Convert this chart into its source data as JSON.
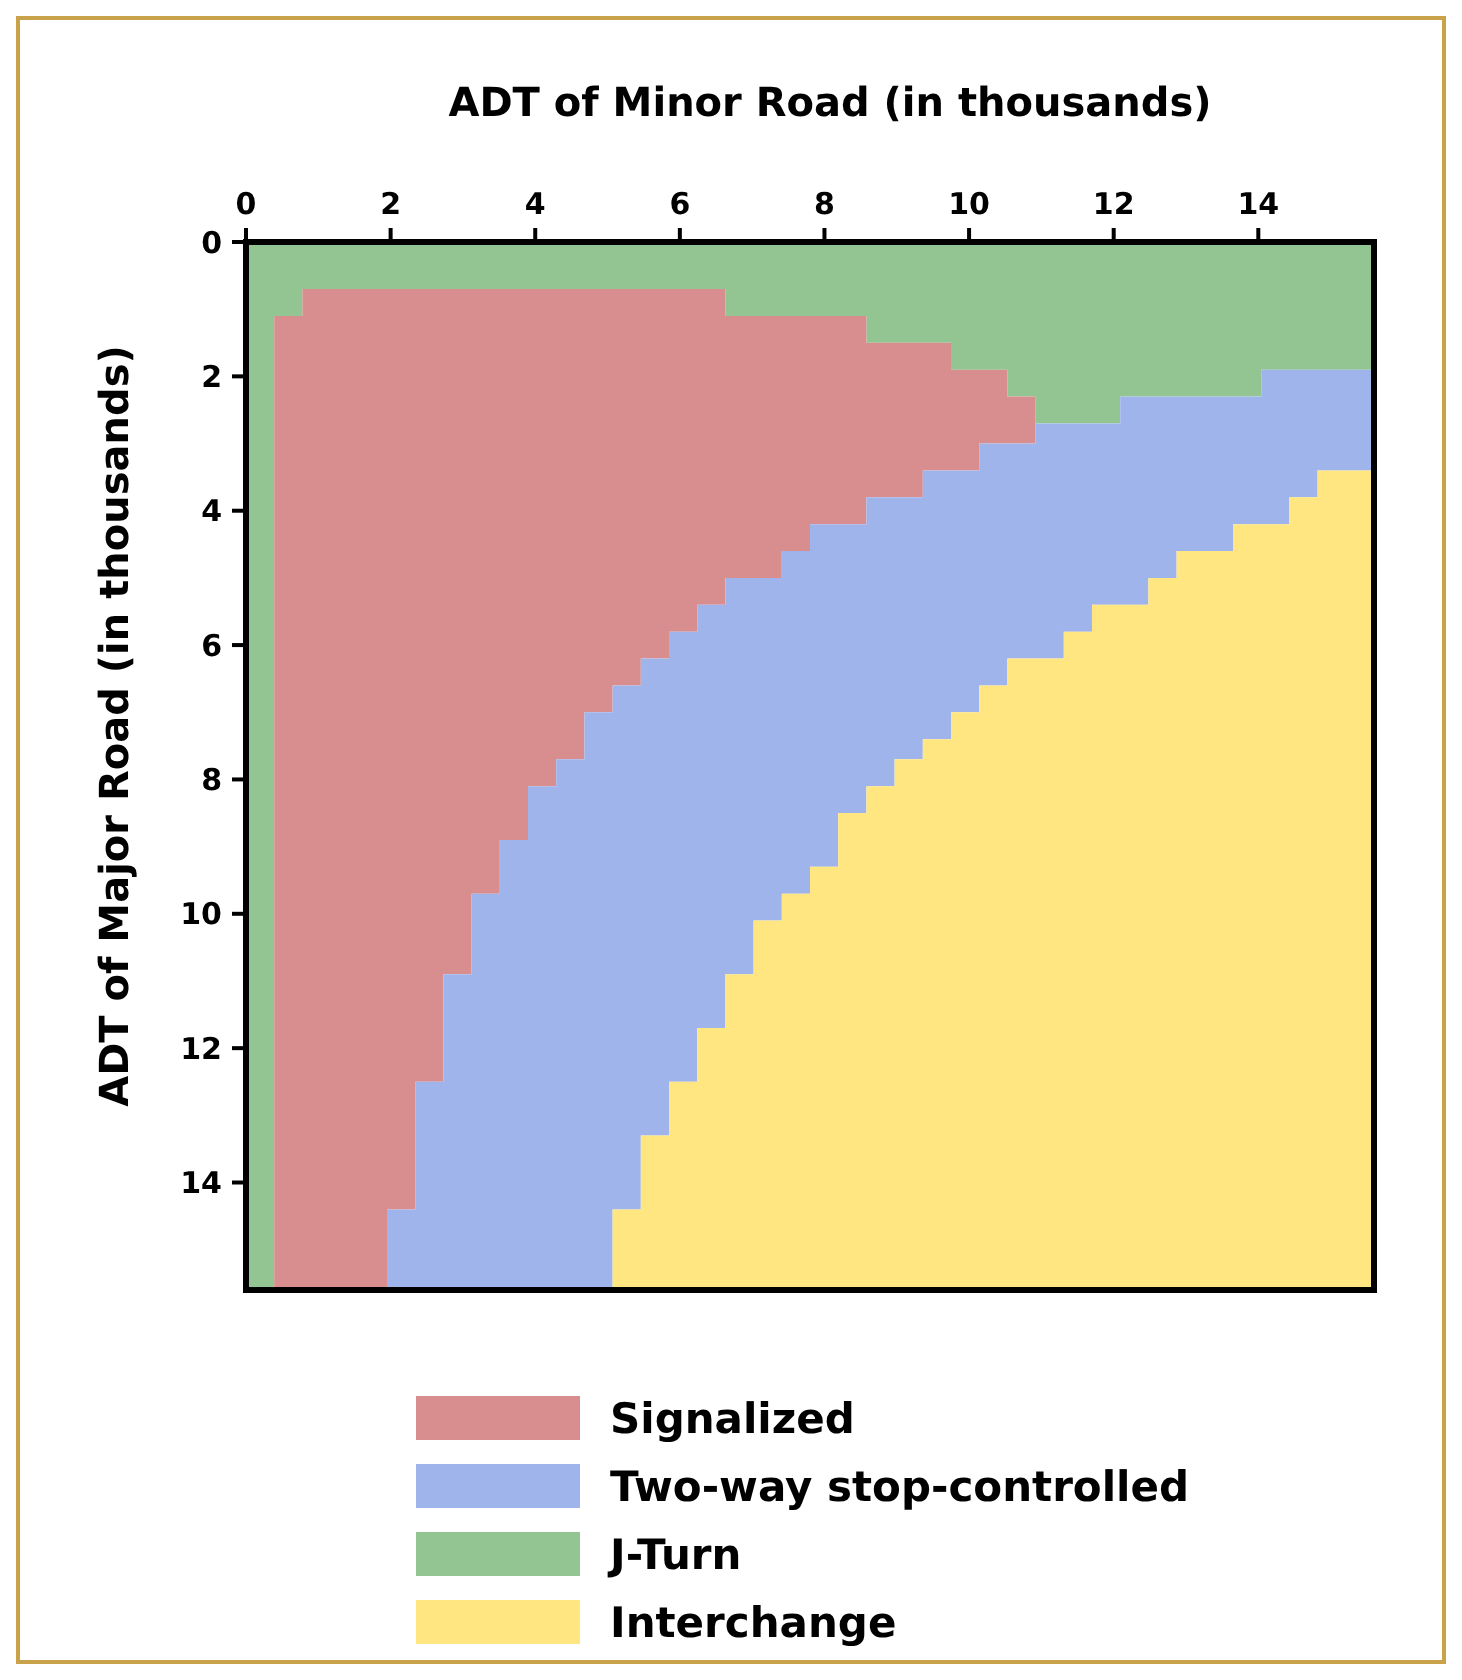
{
  "chart_data": {
    "type": "area",
    "stacked": true,
    "title": "ADT of Minor Road (in thousands)",
    "ylabel": "ADT of Major Road (in thousands)",
    "x": [
      0,
      0.39,
      0.78,
      1.95,
      2.34,
      2.73,
      3.12,
      3.51,
      3.9,
      4.29,
      4.68,
      5.07,
      5.46,
      5.85,
      6.24,
      6.63,
      7.02,
      7.41,
      7.8,
      8.19,
      8.58,
      8.97,
      9.36,
      9.75,
      10.14,
      10.53,
      10.92,
      11.31,
      11.7,
      12.09,
      12.48,
      12.87,
      13.26,
      13.65,
      14.04,
      14.43,
      14.82,
      15.6
    ],
    "xlim": [
      0,
      15.6
    ],
    "xticks": [
      0,
      2,
      4,
      6,
      8,
      10,
      12,
      14
    ],
    "ylim": [
      15.6,
      0
    ],
    "yticks": [
      0,
      2,
      4,
      6,
      8,
      10,
      12,
      14
    ],
    "legend": "bottom",
    "grid": false,
    "series": [
      {
        "name": "J-Turn",
        "color": "#93c592",
        "values": [
          15.6,
          1.1,
          0.7,
          0.7,
          0.7,
          0.7,
          0.7,
          0.7,
          0.7,
          0.7,
          0.7,
          0.7,
          0.7,
          0.7,
          0.7,
          1.1,
          1.1,
          1.1,
          1.1,
          1.1,
          1.5,
          1.5,
          1.5,
          1.9,
          1.9,
          2.3,
          2.7,
          2.7,
          2.7,
          2.3,
          2.3,
          2.3,
          2.3,
          2.3,
          1.9,
          1.9,
          1.9,
          1.9
        ]
      },
      {
        "name": "Signalized",
        "color": "#d88e8e",
        "values": [
          0,
          14.5,
          14.9,
          13.7,
          11.8,
          10.2,
          9.0,
          8.2,
          7.4,
          7.0,
          6.3,
          5.9,
          5.5,
          5.1,
          4.7,
          3.9,
          3.9,
          3.5,
          3.1,
          3.1,
          2.3,
          2.3,
          1.9,
          1.5,
          1.1,
          0.7,
          0,
          0,
          0,
          0,
          0,
          0,
          0,
          0,
          0,
          0,
          0,
          0
        ]
      },
      {
        "name": "Two-way stop-controlled",
        "color": "#a0b4ec",
        "values": [
          0,
          0,
          0,
          1.2,
          3.1,
          4.7,
          5.9,
          6.7,
          7.5,
          7.9,
          8.6,
          7.8,
          7.1,
          6.7,
          6.3,
          5.9,
          5.1,
          5.1,
          5.1,
          4.3,
          4.3,
          3.9,
          4.0,
          3.6,
          3.6,
          3.2,
          3.5,
          3.1,
          2.7,
          3.1,
          2.7,
          2.3,
          2.3,
          1.9,
          2.3,
          1.9,
          1.5,
          1.5
        ]
      },
      {
        "name": "Interchange",
        "color": "#ffe680",
        "values": [
          0,
          0,
          0,
          0,
          0,
          0,
          0,
          0,
          0,
          0,
          0,
          1.2,
          2.3,
          3.1,
          3.9,
          4.7,
          5.5,
          5.9,
          6.3,
          7.1,
          7.5,
          7.9,
          8.2,
          8.6,
          9.0,
          9.4,
          9.4,
          9.8,
          10.2,
          10.2,
          10.6,
          11.0,
          11.0,
          11.4,
          11.4,
          11.8,
          12.2,
          12.2
        ]
      }
    ]
  }
}
